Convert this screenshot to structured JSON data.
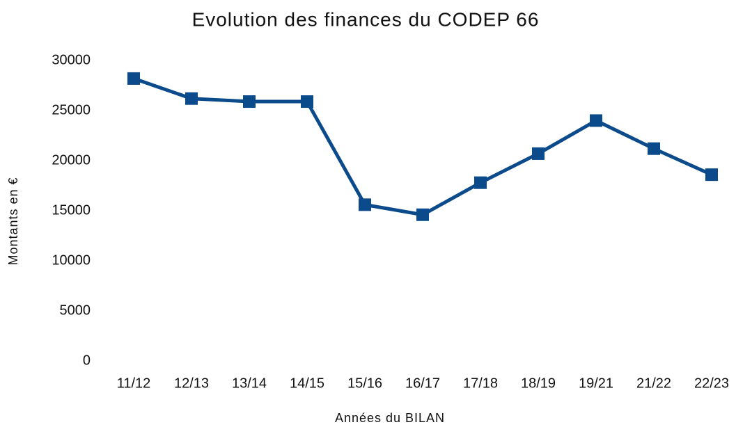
{
  "chart_data": {
    "type": "line",
    "title": "Evolution des finances du CODEP 66",
    "x_label": "Années du BILAN",
    "y_label": "Montants en €",
    "categories": [
      "11/12",
      "12/13",
      "13/14",
      "14/15",
      "15/16",
      "16/17",
      "17/18",
      "18/19",
      "19/21",
      "21/22",
      "22/23"
    ],
    "values": [
      28200,
      26200,
      25900,
      25900,
      15600,
      14600,
      17800,
      20700,
      24000,
      21200,
      18600
    ],
    "color": "#0b4a8b",
    "marker": "square",
    "ylim": [
      0,
      30000
    ],
    "yticks": [
      0,
      5000,
      10000,
      15000,
      20000,
      25000,
      30000
    ],
    "grid": false
  }
}
